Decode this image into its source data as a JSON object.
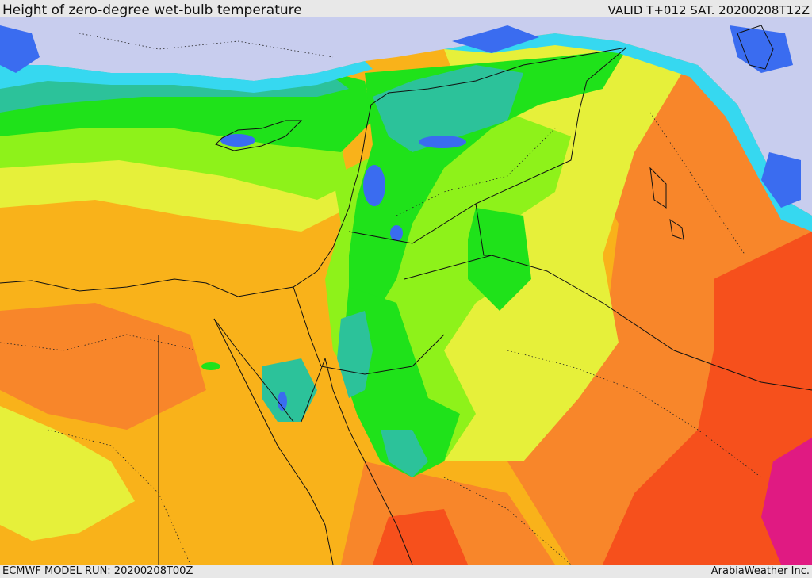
{
  "header": {
    "title": "Height of zero-degree wet-bulb temperature",
    "valid": "VALID T+012 SAT. 20200208T12Z"
  },
  "footer": {
    "model_run": "ECMWF MODEL RUN: 20200208T00Z",
    "credit": "ArabiaWeather Inc."
  },
  "colors": {
    "sea_cold": "#c8cdee",
    "blue": "#3a6cf0",
    "light_blue": "#36d8f0",
    "teal": "#2cc29a",
    "green": "#1fe21a",
    "lime": "#8ef21a",
    "yellow": "#e6f03a",
    "orange": "#f9b21a",
    "dark_orange": "#f8862a",
    "red_orange": "#f6501c",
    "magenta": "#e01a82"
  }
}
